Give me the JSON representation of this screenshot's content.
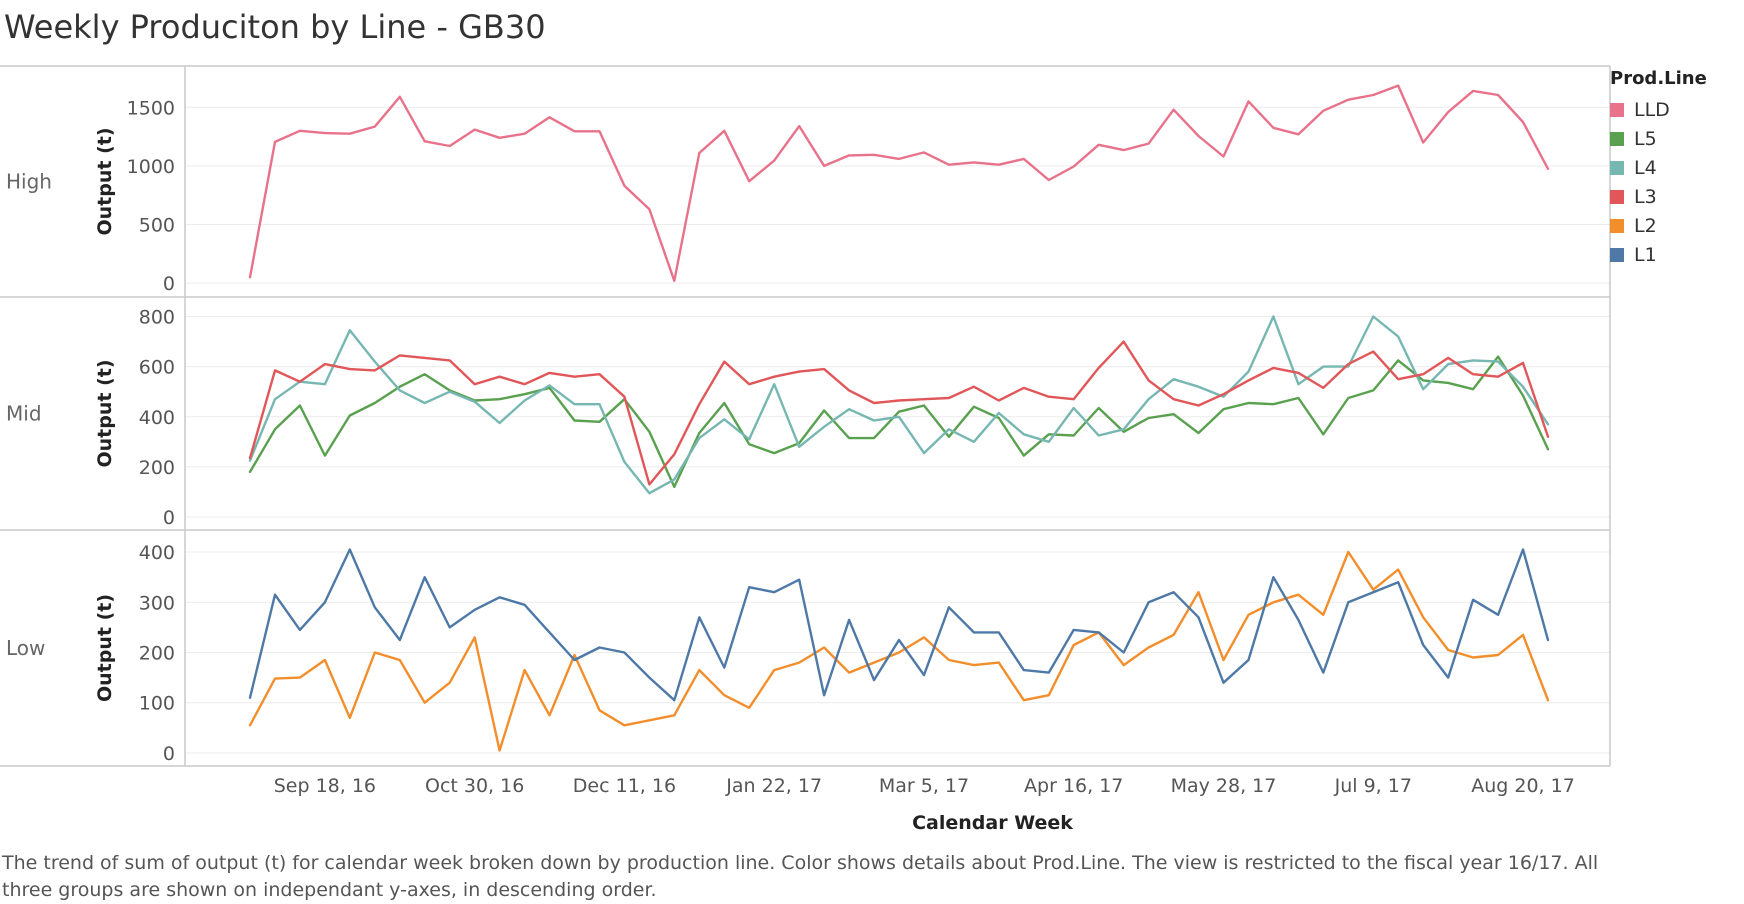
{
  "title": "Weekly Produciton by Line - GB30",
  "caption": "The trend of sum of output (t) for calendar week broken down by production line.  Color shows details about Prod.Line. The view is restricted to the fiscal year 16/17. All three groups are shown on independant y-axes, in descending order.",
  "legend": {
    "title": "Prod.Line",
    "items": [
      {
        "label": "LLD",
        "color": "#e8728a"
      },
      {
        "label": "L5",
        "color": "#59a14f"
      },
      {
        "label": "L4",
        "color": "#76b7b2"
      },
      {
        "label": "L3",
        "color": "#e15759"
      },
      {
        "label": "L2",
        "color": "#f28e2b"
      },
      {
        "label": "L1",
        "color": "#4e79a7"
      }
    ]
  },
  "chart_data": {
    "type": "line",
    "xlabel": "Calendar Week",
    "x_tick_labels": [
      "Sep 18, 16",
      "Oct 30, 16",
      "Dec 11, 16",
      "Jan 22, 17",
      "Mar 5, 17",
      "Apr 16, 17",
      "May 28, 17",
      "Jul 9, 17",
      "Aug 20, 17"
    ],
    "x_tick_week_index": [
      3,
      9,
      15,
      21,
      27,
      33,
      39,
      45,
      51
    ],
    "weeks_count": 53,
    "first_week": "Aug 28, 16",
    "grid": true,
    "legend_position": "right",
    "panels": [
      {
        "row_label": "High",
        "ylabel": "Output (t)",
        "ylim": [
          -50,
          1750
        ],
        "yticks": [
          0,
          500,
          1000,
          1500
        ],
        "series": [
          {
            "name": "LLD",
            "color": "#e8728a",
            "values": [
              50,
              1205,
              1300,
              1280,
              1275,
              1335,
              1590,
              1210,
              1170,
              1310,
              1240,
              1275,
              1415,
              1295,
              1295,
              830,
              630,
              20,
              1110,
              1300,
              870,
              1045,
              1340,
              1000,
              1090,
              1095,
              1060,
              1115,
              1010,
              1030,
              1010,
              1060,
              880,
              995,
              1180,
              1135,
              1190,
              1480,
              1255,
              1080,
              1550,
              1325,
              1270,
              1470,
              1565,
              1605,
              1685,
              1200,
              1460,
              1640,
              1605,
              1375,
              975
            ]
          }
        ]
      },
      {
        "row_label": "Mid",
        "ylabel": "Output (t)",
        "ylim": [
          -20,
          830
        ],
        "yticks": [
          0,
          200,
          400,
          600,
          800
        ],
        "series": [
          {
            "name": "L5",
            "color": "#59a14f",
            "values": [
              180,
              350,
              445,
              245,
              405,
              455,
              520,
              570,
              505,
              465,
              470,
              490,
              515,
              385,
              380,
              470,
              340,
              120,
              335,
              455,
              290,
              255,
              295,
              425,
              315,
              315,
              420,
              445,
              320,
              440,
              395,
              245,
              330,
              325,
              435,
              340,
              395,
              410,
              335,
              430,
              455,
              450,
              475,
              330,
              475,
              505,
              625,
              545,
              535,
              510,
              640,
              485,
              270
            ]
          },
          {
            "name": "L4",
            "color": "#76b7b2",
            "values": [
              225,
              470,
              540,
              530,
              745,
              620,
              505,
              455,
              500,
              460,
              375,
              465,
              525,
              450,
              450,
              220,
              95,
              150,
              315,
              390,
              310,
              530,
              280,
              360,
              430,
              385,
              400,
              255,
              350,
              300,
              415,
              330,
              300,
              435,
              325,
              350,
              470,
              550,
              520,
              480,
              580,
              800,
              530,
              600,
              600,
              800,
              720,
              510,
              610,
              625,
              620,
              520,
              370
            ]
          },
          {
            "name": "L3",
            "color": "#e15759",
            "values": [
              235,
              585,
              540,
              610,
              590,
              585,
              645,
              635,
              625,
              530,
              560,
              530,
              575,
              560,
              570,
              480,
              130,
              250,
              450,
              620,
              530,
              560,
              580,
              590,
              505,
              455,
              465,
              470,
              475,
              520,
              465,
              515,
              480,
              470,
              595,
              700,
              545,
              470,
              445,
              490,
              545,
              595,
              575,
              515,
              610,
              660,
              550,
              570,
              635,
              570,
              560,
              615,
              320
            ]
          }
        ]
      },
      {
        "row_label": "Low",
        "ylabel": "Output (t)",
        "ylim": [
          -10,
          420
        ],
        "yticks": [
          0,
          100,
          200,
          300,
          400
        ],
        "series": [
          {
            "name": "L2",
            "color": "#f28e2b",
            "values": [
              55,
              148,
              150,
              185,
              70,
              200,
              185,
              100,
              140,
              230,
              5,
              165,
              75,
              195,
              85,
              55,
              65,
              75,
              165,
              115,
              90,
              165,
              180,
              210,
              160,
              180,
              200,
              230,
              185,
              175,
              180,
              105,
              115,
              215,
              240,
              175,
              210,
              235,
              320,
              185,
              275,
              300,
              315,
              275,
              400,
              325,
              365,
              270,
              205,
              190,
              195,
              235,
              105
            ]
          },
          {
            "name": "L1",
            "color": "#4e79a7",
            "values": [
              110,
              315,
              245,
              300,
              405,
              290,
              225,
              350,
              250,
              285,
              310,
              295,
              240,
              185,
              210,
              200,
              150,
              105,
              270,
              170,
              330,
              320,
              345,
              115,
              265,
              145,
              225,
              155,
              290,
              240,
              240,
              165,
              160,
              245,
              240,
              200,
              300,
              320,
              270,
              140,
              185,
              350,
              265,
              160,
              300,
              320,
              340,
              215,
              150,
              305,
              275,
              405,
              225
            ]
          }
        ]
      }
    ]
  }
}
